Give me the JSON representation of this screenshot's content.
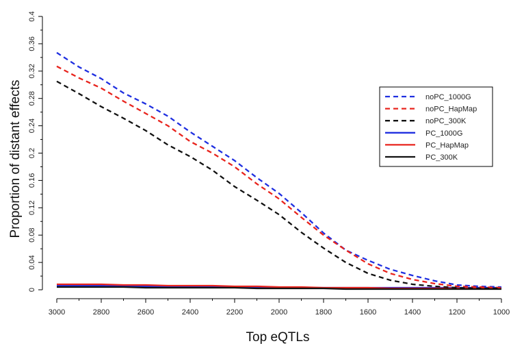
{
  "chart_data": {
    "type": "line",
    "xlabel": "Top eQTLs",
    "ylabel": "Proportion of distant effects",
    "xlim": [
      3000,
      1000
    ],
    "ylim": [
      0,
      0.4
    ],
    "x_reversed": true,
    "grid": false,
    "legend_position": "right",
    "x_ticks": [
      3000,
      2800,
      2600,
      2400,
      2200,
      2000,
      1800,
      1600,
      1400,
      1200,
      1000
    ],
    "y_ticks": [
      0,
      0.04,
      0.08,
      0.12,
      0.16,
      0.2,
      0.24,
      0.28,
      0.32,
      0.36,
      0.4
    ],
    "x_tick_labels": [
      "3000",
      "2800",
      "2600",
      "2400",
      "2200",
      "2000",
      "1800",
      "1600",
      "1400",
      "1200",
      "1000"
    ],
    "y_tick_labels": [
      "0",
      "0.04",
      "0.08",
      "0.12",
      "0.16",
      "0.2",
      "0.24",
      "0.28",
      "0.32",
      "0.36",
      "0.4"
    ],
    "x": [
      3000,
      2900,
      2800,
      2700,
      2600,
      2500,
      2400,
      2300,
      2200,
      2100,
      2000,
      1900,
      1800,
      1700,
      1600,
      1500,
      1400,
      1300,
      1200,
      1100,
      1000
    ],
    "series": [
      {
        "name": "noPC_1000G",
        "color": "#1f2fe0",
        "dash": true,
        "values": [
          0.347,
          0.326,
          0.309,
          0.288,
          0.272,
          0.254,
          0.231,
          0.21,
          0.189,
          0.164,
          0.141,
          0.113,
          0.083,
          0.058,
          0.043,
          0.03,
          0.021,
          0.013,
          0.007,
          0.005,
          0.004
        ]
      },
      {
        "name": "noPC_HapMap",
        "color": "#e8241d",
        "dash": true,
        "values": [
          0.327,
          0.31,
          0.295,
          0.276,
          0.258,
          0.24,
          0.217,
          0.2,
          0.18,
          0.155,
          0.133,
          0.106,
          0.08,
          0.058,
          0.038,
          0.024,
          0.015,
          0.009,
          0.005,
          0.004,
          0.003
        ]
      },
      {
        "name": "noPC_300K",
        "color": "#111111",
        "dash": true,
        "values": [
          0.305,
          0.287,
          0.268,
          0.251,
          0.233,
          0.212,
          0.195,
          0.175,
          0.151,
          0.131,
          0.11,
          0.084,
          0.061,
          0.04,
          0.024,
          0.014,
          0.008,
          0.005,
          0.003,
          0.002,
          0.002
        ]
      },
      {
        "name": "PC_1000G",
        "color": "#1f2fe0",
        "dash": false,
        "values": [
          0.006,
          0.006,
          0.006,
          0.005,
          0.005,
          0.005,
          0.005,
          0.004,
          0.004,
          0.004,
          0.003,
          0.003,
          0.003,
          0.003,
          0.003,
          0.003,
          0.003,
          0.003,
          0.003,
          0.003,
          0.003
        ]
      },
      {
        "name": "PC_HapMap",
        "color": "#e8241d",
        "dash": false,
        "values": [
          0.008,
          0.008,
          0.008,
          0.007,
          0.007,
          0.006,
          0.006,
          0.006,
          0.005,
          0.005,
          0.004,
          0.004,
          0.003,
          0.003,
          0.003,
          0.002,
          0.002,
          0.002,
          0.002,
          0.002,
          0.002
        ]
      },
      {
        "name": "PC_300K",
        "color": "#111111",
        "dash": false,
        "values": [
          0.004,
          0.004,
          0.004,
          0.004,
          0.003,
          0.003,
          0.003,
          0.003,
          0.003,
          0.002,
          0.002,
          0.002,
          0.002,
          0.001,
          0.001,
          0.001,
          0.001,
          0.001,
          0.001,
          0.001,
          0.001
        ]
      }
    ]
  }
}
